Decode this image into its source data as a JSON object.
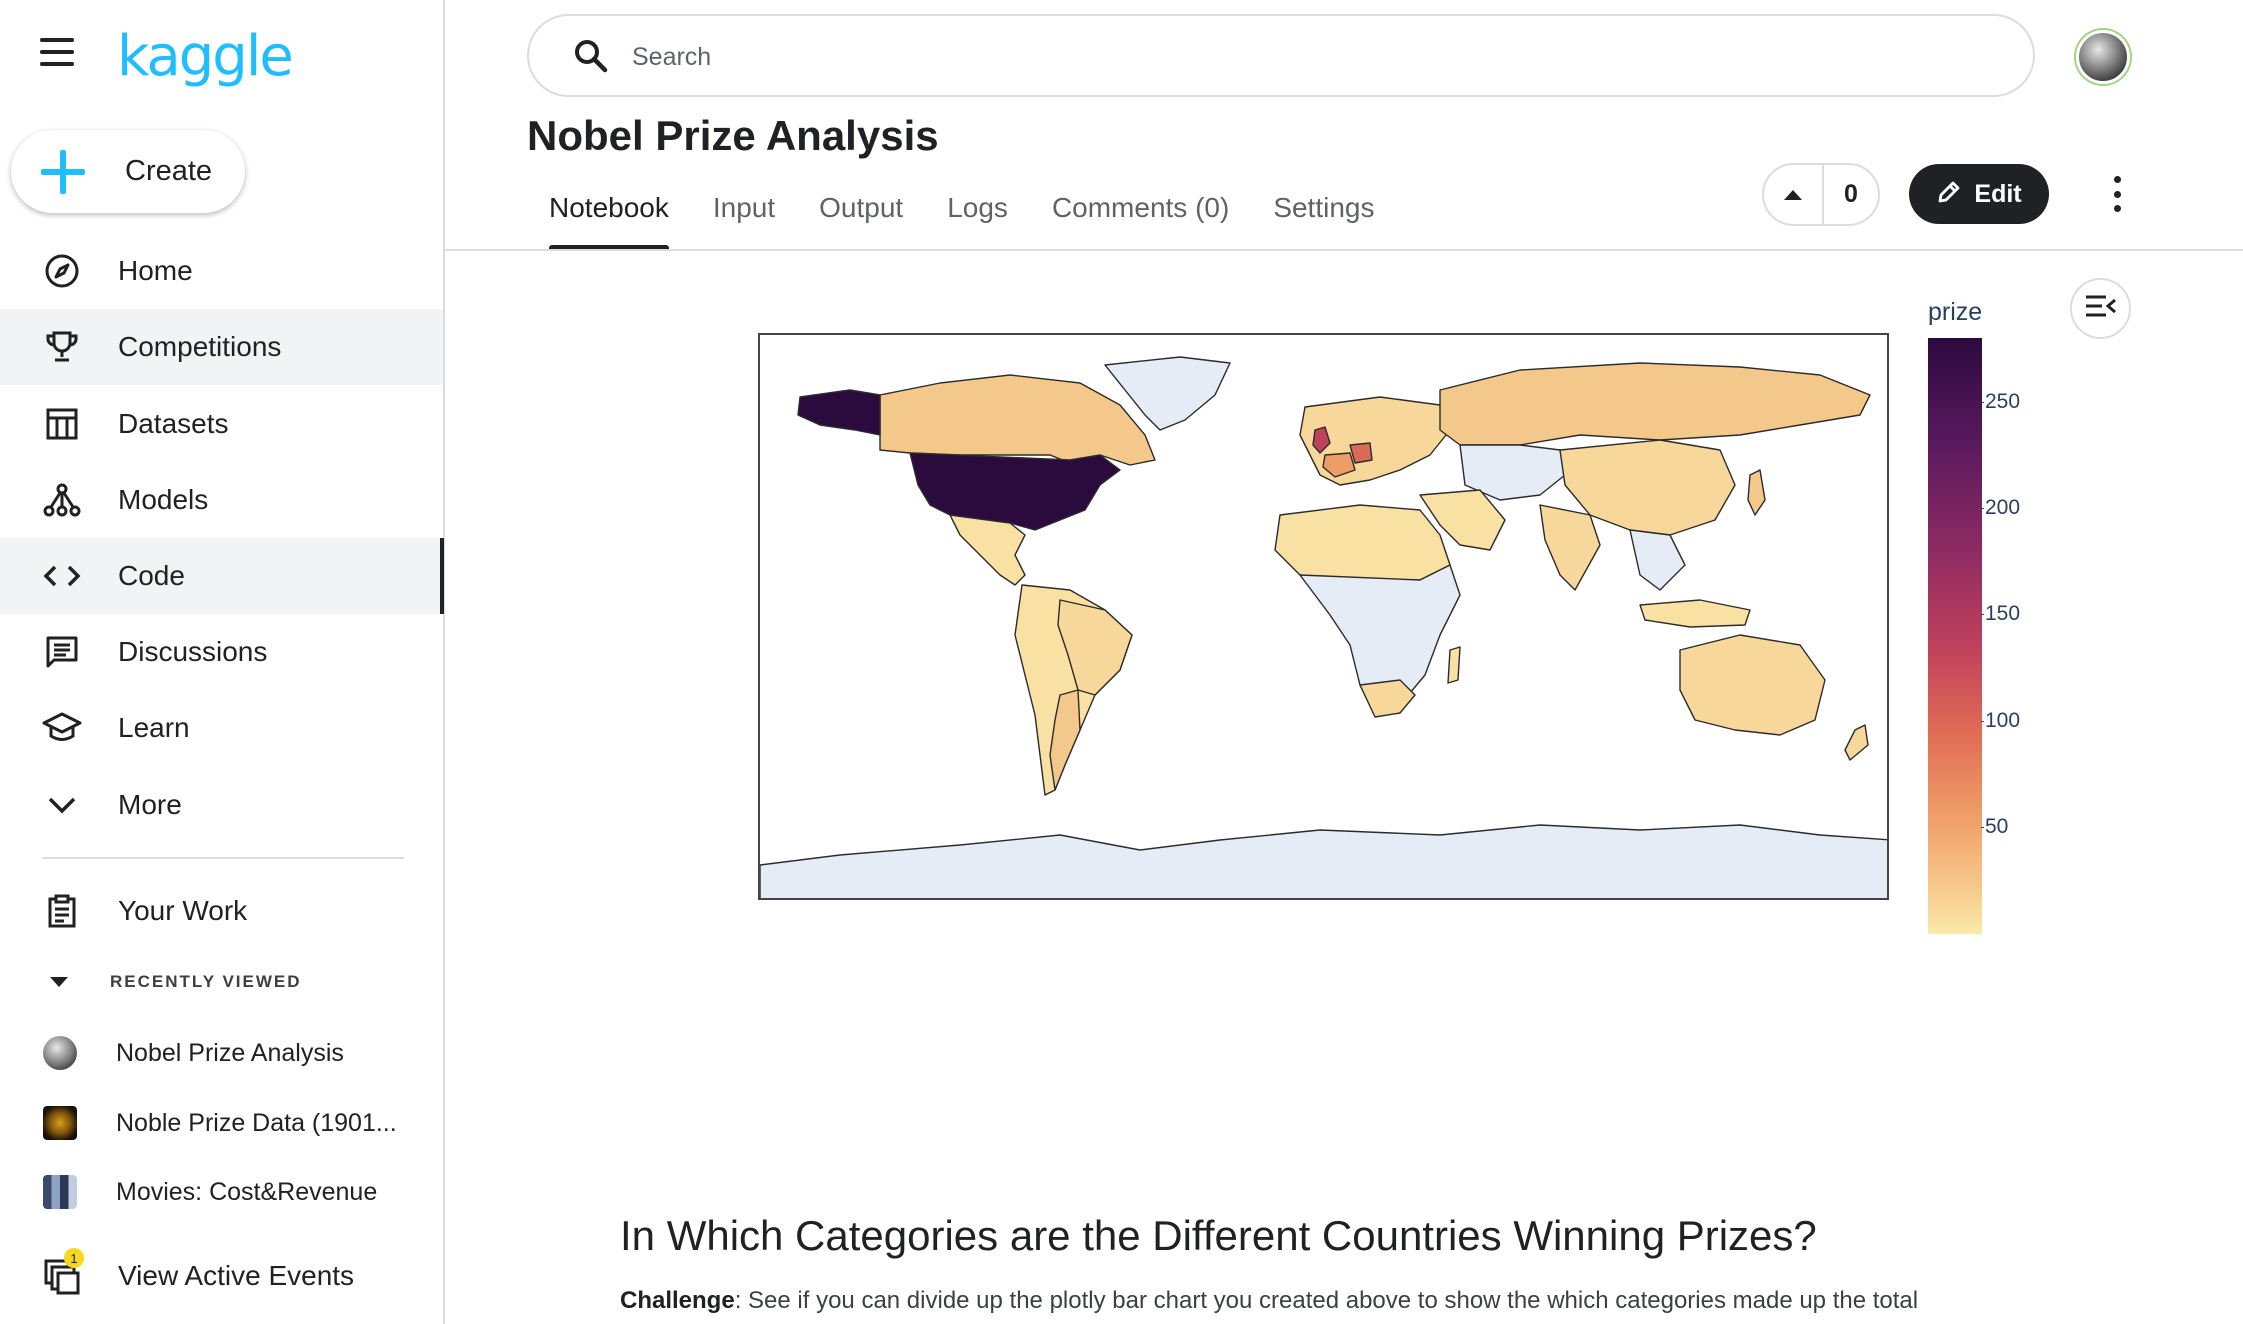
{
  "app": {
    "logo": "kaggle"
  },
  "sidebar": {
    "create_label": "Create",
    "items": [
      {
        "label": "Home",
        "icon": "compass-icon"
      },
      {
        "label": "Competitions",
        "icon": "trophy-icon"
      },
      {
        "label": "Datasets",
        "icon": "table-icon"
      },
      {
        "label": "Models",
        "icon": "models-icon"
      },
      {
        "label": "Code",
        "icon": "code-icon"
      },
      {
        "label": "Discussions",
        "icon": "chat-icon"
      },
      {
        "label": "Learn",
        "icon": "graduation-cap-icon"
      },
      {
        "label": "More",
        "icon": "chevron-down-icon"
      }
    ],
    "your_work": "Your Work",
    "recently_viewed_label": "RECENTLY VIEWED",
    "recent": [
      {
        "label": "Nobel Prize Analysis"
      },
      {
        "label": "Noble Prize Data (1901..."
      },
      {
        "label": "Movies: Cost&Revenue"
      }
    ],
    "events_label": "View Active Events",
    "events_badge": "1"
  },
  "header": {
    "search_placeholder": "Search",
    "title": "Nobel Prize Analysis",
    "tabs": [
      {
        "label": "Notebook"
      },
      {
        "label": "Input"
      },
      {
        "label": "Output"
      },
      {
        "label": "Logs"
      },
      {
        "label": "Comments (0)"
      },
      {
        "label": "Settings"
      }
    ],
    "vote_count": "0",
    "edit_label": "Edit"
  },
  "chart_data": {
    "type": "choropleth",
    "colorbar_title": "prize",
    "colorscale": [
      "#fbeaa8",
      "#ef9d67",
      "#c0415c",
      "#5a1a5e",
      "#2b0a3d"
    ],
    "colorbar_ticks": [
      "250",
      "200",
      "150",
      "100",
      "50"
    ],
    "colorbar_range": [
      1,
      281
    ],
    "no_data_color": "#e5ecf6",
    "highlights": [
      {
        "region": "United States",
        "value": 281
      },
      {
        "region": "United Kingdom",
        "value": 105
      },
      {
        "region": "Germany",
        "value": 84
      },
      {
        "region": "France",
        "value": 57
      }
    ]
  },
  "content": {
    "section_heading": "In Which Categories are the Different Countries Winning Prizes?",
    "challenge_label": "Challenge",
    "challenge_text": ": See if you can divide up the plotly bar chart you created above to show the which categories made up the total"
  }
}
